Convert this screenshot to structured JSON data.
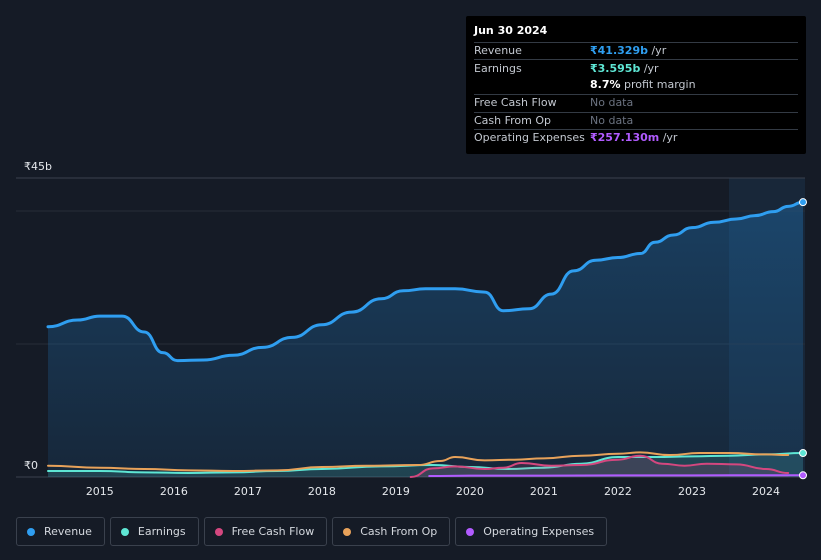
{
  "tooltip": {
    "date": "Jun 30 2024",
    "revenue": {
      "label": "Revenue",
      "value": "₹41.329b",
      "unit": " /yr"
    },
    "earnings": {
      "label": "Earnings",
      "value": "₹3.595b",
      "unit": " /yr"
    },
    "margin": {
      "value": "8.7%",
      "text": " profit margin"
    },
    "fcf": {
      "label": "Free Cash Flow",
      "value": "No data"
    },
    "cfo": {
      "label": "Cash From Op",
      "value": "No data"
    },
    "opex": {
      "label": "Operating Expenses",
      "value": "₹257.130m",
      "unit": " /yr"
    }
  },
  "chart_data": {
    "type": "area",
    "y_axis_labels": {
      "top": "₹45b",
      "bottom": "₹0"
    },
    "ylim": [
      0,
      45
    ],
    "xlim": [
      2014.3,
      2024.5
    ],
    "x_ticks": [
      "2015",
      "2016",
      "2017",
      "2018",
      "2019",
      "2020",
      "2021",
      "2022",
      "2023",
      "2024"
    ],
    "highlight_start": 2023.5,
    "series": [
      {
        "name": "Revenue",
        "color": "#2f9ef0",
        "fill": true,
        "points": [
          [
            2014.3,
            22.6
          ],
          [
            2014.7,
            23.6
          ],
          [
            2015.0,
            24.2
          ],
          [
            2015.3,
            24.2
          ],
          [
            2015.6,
            21.8
          ],
          [
            2015.85,
            18.7
          ],
          [
            2016.05,
            17.5
          ],
          [
            2016.4,
            17.6
          ],
          [
            2016.8,
            18.3
          ],
          [
            2017.2,
            19.5
          ],
          [
            2017.6,
            21.0
          ],
          [
            2018.0,
            22.9
          ],
          [
            2018.4,
            24.8
          ],
          [
            2018.8,
            26.8
          ],
          [
            2019.1,
            28.0
          ],
          [
            2019.4,
            28.3
          ],
          [
            2019.8,
            28.3
          ],
          [
            2020.2,
            27.8
          ],
          [
            2020.45,
            25.0
          ],
          [
            2020.8,
            25.3
          ],
          [
            2021.1,
            27.5
          ],
          [
            2021.4,
            31.0
          ],
          [
            2021.7,
            32.6
          ],
          [
            2022.0,
            33.0
          ],
          [
            2022.3,
            33.6
          ],
          [
            2022.5,
            35.3
          ],
          [
            2022.75,
            36.4
          ],
          [
            2023.0,
            37.5
          ],
          [
            2023.3,
            38.3
          ],
          [
            2023.6,
            38.8
          ],
          [
            2023.85,
            39.3
          ],
          [
            2024.1,
            39.9
          ],
          [
            2024.3,
            40.7
          ],
          [
            2024.5,
            41.33
          ]
        ]
      },
      {
        "name": "Earnings",
        "color": "#5ee6d4",
        "fill": true,
        "points": [
          [
            2014.3,
            0.9
          ],
          [
            2015.0,
            0.9
          ],
          [
            2015.6,
            0.7
          ],
          [
            2016.2,
            0.6
          ],
          [
            2016.8,
            0.7
          ],
          [
            2017.4,
            0.9
          ],
          [
            2018.0,
            1.2
          ],
          [
            2018.8,
            1.6
          ],
          [
            2019.5,
            1.8
          ],
          [
            2020.0,
            1.5
          ],
          [
            2020.5,
            1.2
          ],
          [
            2021.0,
            1.4
          ],
          [
            2021.5,
            2.0
          ],
          [
            2022.0,
            3.0
          ],
          [
            2022.5,
            3.0
          ],
          [
            2023.0,
            3.1
          ],
          [
            2023.5,
            3.2
          ],
          [
            2024.0,
            3.4
          ],
          [
            2024.5,
            3.6
          ]
        ]
      },
      {
        "name": "Free Cash Flow",
        "color": "#d4477f",
        "fill": true,
        "points": [
          [
            2019.2,
            0.0
          ],
          [
            2019.5,
            1.3
          ],
          [
            2019.8,
            1.6
          ],
          [
            2020.2,
            1.2
          ],
          [
            2020.45,
            1.4
          ],
          [
            2020.7,
            2.1
          ],
          [
            2021.1,
            1.7
          ],
          [
            2021.5,
            1.8
          ],
          [
            2022.0,
            2.6
          ],
          [
            2022.3,
            3.2
          ],
          [
            2022.6,
            2.0
          ],
          [
            2022.9,
            1.7
          ],
          [
            2023.2,
            2.0
          ],
          [
            2023.6,
            1.9
          ],
          [
            2024.0,
            1.2
          ],
          [
            2024.3,
            0.6
          ]
        ]
      },
      {
        "name": "Cash From Op",
        "color": "#e8a25a",
        "fill": false,
        "points": [
          [
            2014.3,
            1.7
          ],
          [
            2015.0,
            1.4
          ],
          [
            2015.6,
            1.2
          ],
          [
            2016.2,
            1.0
          ],
          [
            2016.8,
            0.9
          ],
          [
            2017.4,
            1.0
          ],
          [
            2018.0,
            1.5
          ],
          [
            2018.6,
            1.7
          ],
          [
            2019.3,
            1.8
          ],
          [
            2019.6,
            2.4
          ],
          [
            2019.8,
            3.0
          ],
          [
            2020.2,
            2.5
          ],
          [
            2020.6,
            2.6
          ],
          [
            2021.0,
            2.8
          ],
          [
            2021.5,
            3.2
          ],
          [
            2022.0,
            3.5
          ],
          [
            2022.3,
            3.7
          ],
          [
            2022.7,
            3.3
          ],
          [
            2023.1,
            3.6
          ],
          [
            2023.5,
            3.6
          ],
          [
            2024.0,
            3.4
          ],
          [
            2024.3,
            3.3
          ]
        ]
      },
      {
        "name": "Operating Expenses",
        "color": "#b15bff",
        "fill": false,
        "points": [
          [
            2019.45,
            0.15
          ],
          [
            2020.0,
            0.2
          ],
          [
            2021.0,
            0.2
          ],
          [
            2022.0,
            0.25
          ],
          [
            2023.0,
            0.25
          ],
          [
            2024.0,
            0.26
          ],
          [
            2024.5,
            0.26
          ]
        ]
      }
    ]
  },
  "legend": [
    {
      "label": "Revenue",
      "color": "#2f9ef0"
    },
    {
      "label": "Earnings",
      "color": "#5ee6d4"
    },
    {
      "label": "Free Cash Flow",
      "color": "#d4477f"
    },
    {
      "label": "Cash From Op",
      "color": "#e8a25a"
    },
    {
      "label": "Operating Expenses",
      "color": "#b15bff"
    }
  ]
}
